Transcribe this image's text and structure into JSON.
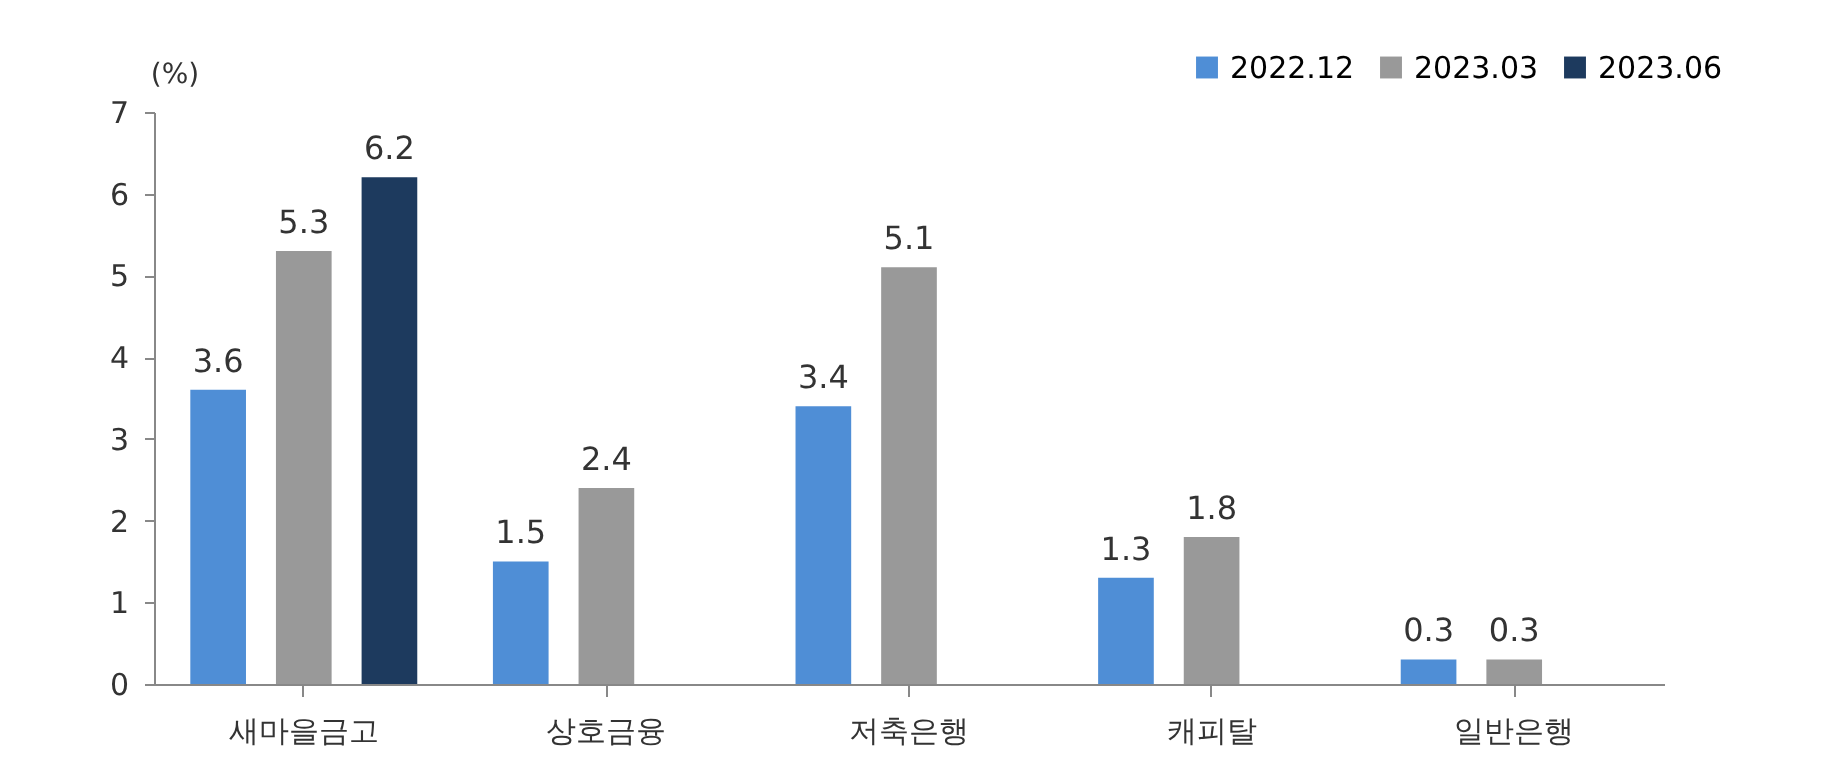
{
  "chart_data": {
    "type": "bar",
    "ylabel": "(%)",
    "categories": [
      "새마을금고",
      "상호금융",
      "저축은행",
      "캐피탈",
      "일반은행"
    ],
    "series": [
      {
        "name": "2022.12",
        "color": "#4f8ed6",
        "values": [
          3.6,
          1.5,
          3.4,
          1.3,
          0.3
        ]
      },
      {
        "name": "2023.03",
        "color": "#999999",
        "values": [
          5.3,
          2.4,
          5.1,
          1.8,
          0.3
        ]
      },
      {
        "name": "2023.06",
        "color": "#1d3a5e",
        "values": [
          6.2,
          null,
          null,
          null,
          null
        ]
      }
    ],
    "ylim": [
      0,
      7
    ],
    "yticks": [
      0,
      1,
      2,
      3,
      4,
      5,
      6,
      7
    ],
    "grid": false,
    "legend": "top right",
    "data_labels": true
  }
}
